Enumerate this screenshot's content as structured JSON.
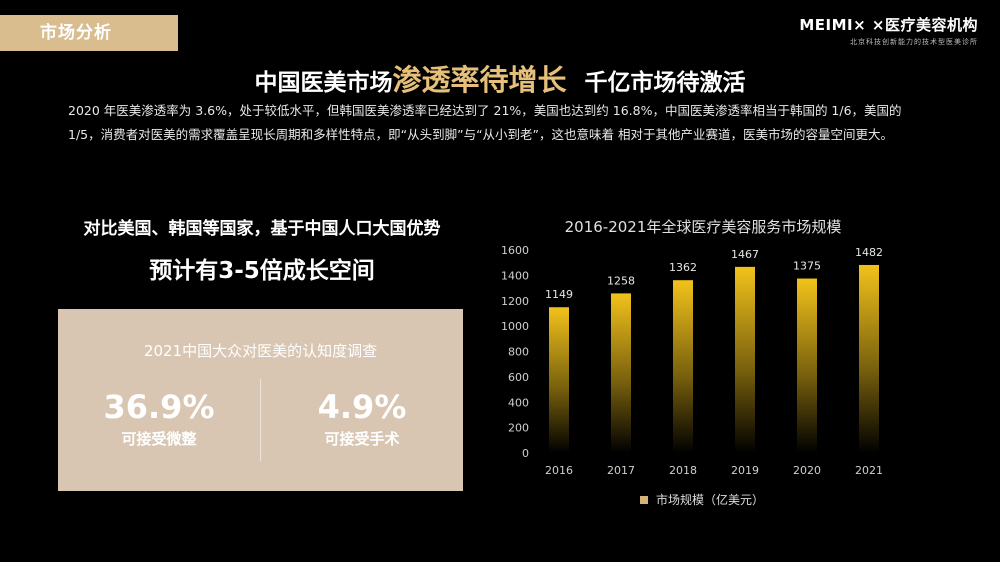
{
  "section_tag": "市场分析",
  "brand": {
    "name": "MEIMI× ×医疗美容机构",
    "subtitle": "北京科技创新能力的技术型医美诊所"
  },
  "headline": {
    "part1": "中国医美市场",
    "highlight": "渗透率待增长",
    "part2": "千亿市场待激活"
  },
  "intro": "2020 年医美渗透率为 3.6%，处于较低水平，但韩国医美渗透率已经达到了 21%，美国也达到约 16.8%，中国医美渗透率相当于韩国的 1/6，美国的 1/5，消费者对医美的需求覆盖呈现长周期和多样性特点，即“从头到脚”与“从小到老”，这也意味着 相对于其他产业赛道，医美市场的容量空间更大。",
  "claim": {
    "line1": "对比美国、韩国等国家，基于中国人口大国优势",
    "line2": "预计有3-5倍成长空间"
  },
  "survey": {
    "title": "2021中国大众对医美的认知度调查",
    "stats": [
      {
        "value": "36.9%",
        "label": "可接受微整"
      },
      {
        "value": "4.9%",
        "label": "可接受手术"
      }
    ]
  },
  "chart_data": {
    "type": "bar",
    "title": "2016-2021年全球医疗美容服务市场规模",
    "categories": [
      "2016",
      "2017",
      "2018",
      "2019",
      "2020",
      "2021"
    ],
    "series": [
      {
        "name": "市场规模（亿美元）",
        "values": [
          1149,
          1258,
          1362,
          1467,
          1375,
          1482
        ]
      }
    ],
    "ylim": [
      0,
      1600
    ],
    "yticks": [
      0,
      200,
      400,
      600,
      800,
      1000,
      1200,
      1400,
      1600
    ],
    "grid": false,
    "legend": "bottom",
    "bar_color": "#f2c21b"
  }
}
